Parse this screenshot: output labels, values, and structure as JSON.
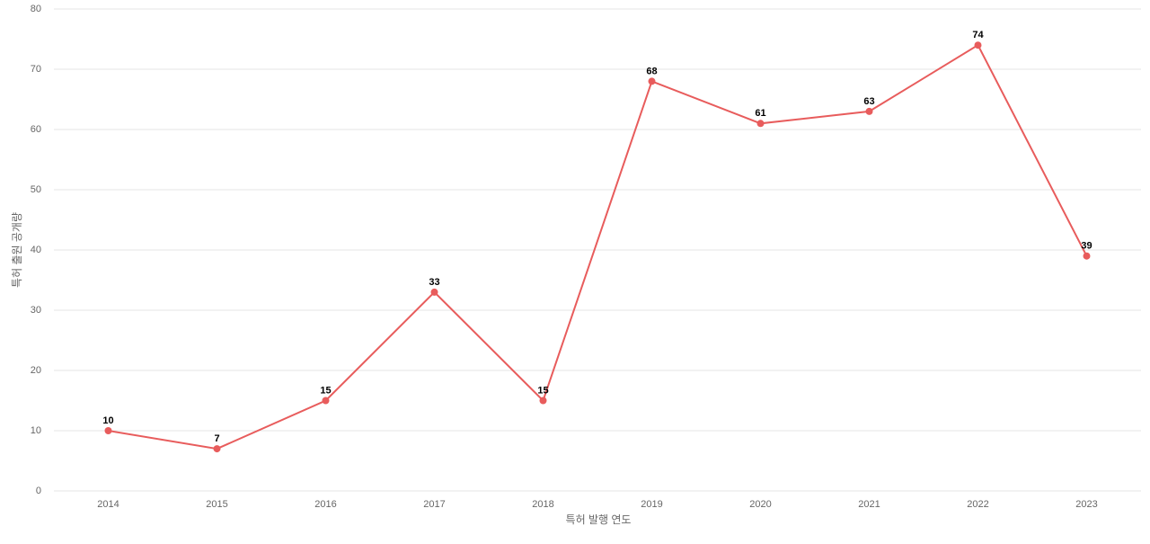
{
  "chart_data": {
    "type": "line",
    "x_label": "특허 발행 연도",
    "y_label": "특허 출원 공개량",
    "categories": [
      "2014",
      "2015",
      "2016",
      "2017",
      "2018",
      "2019",
      "2020",
      "2021",
      "2022",
      "2023"
    ],
    "series": [
      {
        "name": "특허 출원 공개량",
        "color": "#e85c5c",
        "values": [
          10,
          7,
          15,
          33,
          15,
          68,
          61,
          63,
          74,
          39
        ]
      }
    ],
    "ylim": [
      0,
      80
    ],
    "yticks": [
      0,
      10,
      20,
      30,
      40,
      50,
      60,
      70,
      80
    ],
    "grid": true
  }
}
